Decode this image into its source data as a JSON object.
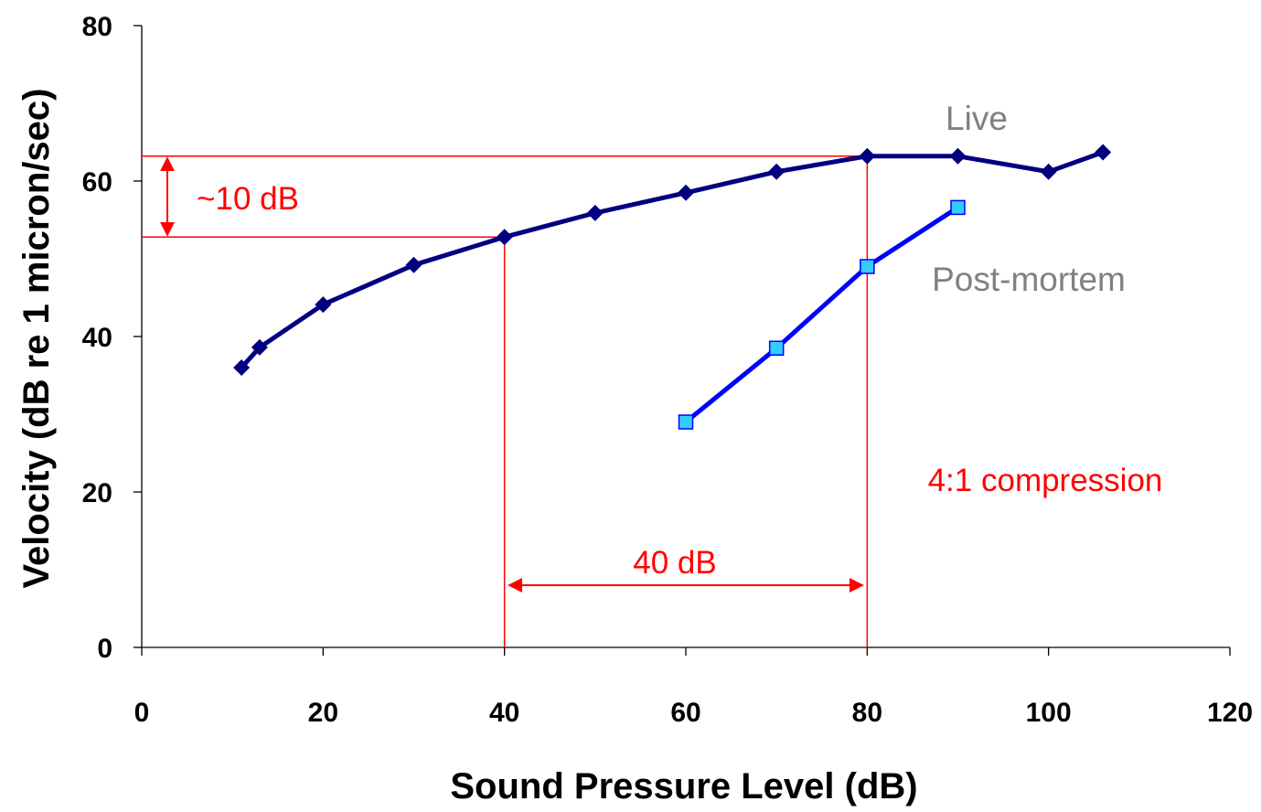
{
  "chart_data": {
    "type": "line",
    "title": "",
    "xlabel": "Sound Pressure Level (dB)",
    "ylabel": "Velocity (dB re 1 micron/sec)",
    "xlim": [
      0,
      120
    ],
    "ylim": [
      0,
      80
    ],
    "xticks": [
      "0",
      "20",
      "40",
      "60",
      "80",
      "100",
      "120"
    ],
    "yticks": [
      "0",
      "20",
      "40",
      "60",
      "80"
    ],
    "grid": false,
    "legend": "none",
    "series": [
      {
        "name": "Live",
        "color": "#000080",
        "marker": "diamond",
        "x": [
          11,
          13,
          20,
          30,
          40,
          50,
          60,
          70,
          80,
          90,
          100,
          106
        ],
        "y": [
          36,
          38.6,
          44.1,
          49.2,
          52.8,
          55.9,
          58.5,
          61.2,
          63.2,
          63.2,
          61.2,
          63.7
        ]
      },
      {
        "name": "Post-mortem",
        "color": "#0000ff",
        "marker": "square",
        "marker_fill": "#33ccff",
        "x": [
          60,
          70,
          80,
          90
        ],
        "y": [
          29,
          38.5,
          49,
          56.6
        ]
      }
    ],
    "annotations": {
      "color": "#ff0000",
      "dB_difference_label": "~10 dB",
      "spl_difference_label": "40 dB",
      "compression_label": "4:1 compression",
      "ref_x_low": 40,
      "ref_x_high": 80,
      "ref_y_low": 52.8,
      "ref_y_high": 63.2,
      "spl_arrow_y": 8,
      "compression_anchor": [
        85,
        21
      ]
    }
  }
}
